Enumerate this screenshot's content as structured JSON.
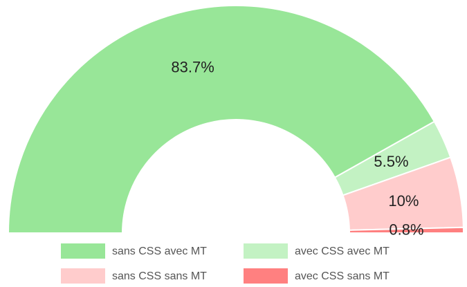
{
  "chart_data": {
    "type": "semi-donut",
    "categories": [
      "sans CSS avec MT",
      "avec CSS avec MT",
      "sans CSS sans MT",
      "avec CSS sans MT"
    ],
    "values": [
      83.7,
      5.5,
      10,
      0.8
    ],
    "value_labels": [
      "83.7%",
      "5.5%",
      "10%",
      "0.8%"
    ],
    "colors": [
      "#98e698",
      "#c3f2c3",
      "#ffcccc",
      "#ff8080"
    ],
    "legend": "bottom"
  }
}
